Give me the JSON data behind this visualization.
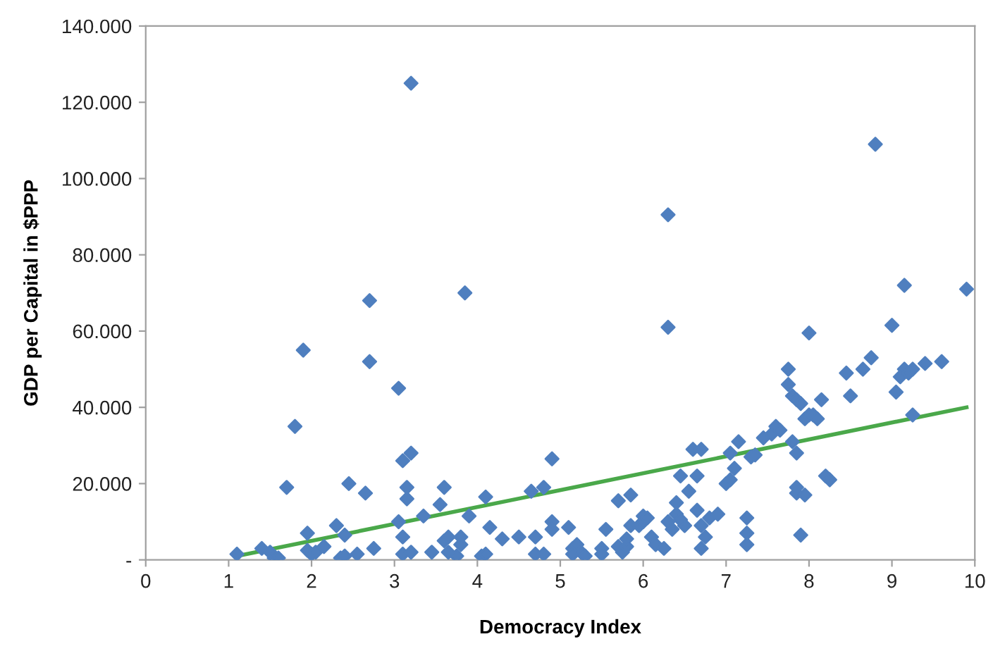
{
  "chart_data": {
    "type": "scatter",
    "xlabel": "Democracy Index",
    "ylabel": "GDP per Capital in $PPP",
    "xlim": [
      0,
      10
    ],
    "xticks": [
      0,
      1,
      2,
      3,
      4,
      5,
      6,
      7,
      8,
      9,
      10
    ],
    "ylim": [
      0,
      140000
    ],
    "yticks": [
      {
        "value": 0,
        "label": "-"
      },
      {
        "value": 20000,
        "label": "20.000"
      },
      {
        "value": 40000,
        "label": "40.000"
      },
      {
        "value": 60000,
        "label": "60.000"
      },
      {
        "value": 80000,
        "label": "80.000"
      },
      {
        "value": 100000,
        "label": "100.000"
      },
      {
        "value": 120000,
        "label": "120.000"
      },
      {
        "value": 140000,
        "label": "140.000"
      }
    ],
    "grid": false,
    "legend": false,
    "series": [
      {
        "marker": "diamond",
        "color": "#4f7fbf",
        "x": [
          1.1,
          1.4,
          1.5,
          1.55,
          1.6,
          1.7,
          1.8,
          1.9,
          1.95,
          1.95,
          2.0,
          2.05,
          2.15,
          2.3,
          2.35,
          2.4,
          2.4,
          2.45,
          2.55,
          2.65,
          2.7,
          2.7,
          2.75,
          3.05,
          3.05,
          3.1,
          3.1,
          3.1,
          3.15,
          3.15,
          3.2,
          3.2,
          3.2,
          3.35,
          3.45,
          3.55,
          3.6,
          3.6,
          3.65,
          3.65,
          3.75,
          3.8,
          3.8,
          3.85,
          3.9,
          4.05,
          4.1,
          4.1,
          4.15,
          4.3,
          4.5,
          4.65,
          4.7,
          4.7,
          4.8,
          4.8,
          4.9,
          4.9,
          4.9,
          5.1,
          5.15,
          5.15,
          5.2,
          5.25,
          5.3,
          5.5,
          5.5,
          5.55,
          5.7,
          5.7,
          5.75,
          5.8,
          5.8,
          5.85,
          5.85,
          5.95,
          6.0,
          6.0,
          6.05,
          6.1,
          6.15,
          6.25,
          6.3,
          6.3,
          6.3,
          6.35,
          6.4,
          6.4,
          6.45,
          6.5,
          6.45,
          6.55,
          6.6,
          6.65,
          6.65,
          6.7,
          6.7,
          6.7,
          6.75,
          6.8,
          6.9,
          7.0,
          7.05,
          7.05,
          7.1,
          7.15,
          7.25,
          7.25,
          7.25,
          7.3,
          7.35,
          7.45,
          7.55,
          7.6,
          7.65,
          7.75,
          7.75,
          7.8,
          7.8,
          7.85,
          7.85,
          7.85,
          7.85,
          7.9,
          7.9,
          7.95,
          7.95,
          8.0,
          8.0,
          8.05,
          8.1,
          8.15,
          8.2,
          8.25,
          8.45,
          8.5,
          8.65,
          8.75,
          8.8,
          9.0,
          9.05,
          9.1,
          9.15,
          9.15,
          9.2,
          9.25,
          9.25,
          9.4,
          9.6,
          9.9
        ],
        "values": [
          1500,
          3000,
          2000,
          500,
          500,
          19000,
          35000,
          55000,
          7000,
          2500,
          1500,
          2000,
          3500,
          9000,
          500,
          1000,
          6500,
          20000,
          1500,
          17500,
          68000,
          52000,
          3000,
          45000,
          10000,
          26000,
          6000,
          1500,
          16000,
          19000,
          28000,
          125000,
          2000,
          11500,
          2000,
          14500,
          19000,
          5000,
          2000,
          6000,
          1000,
          4000,
          6000,
          70000,
          11500,
          1000,
          1500,
          16500,
          8500,
          5500,
          6000,
          18000,
          6000,
          1500,
          1500,
          19000,
          26500,
          10000,
          8000,
          8500,
          3000,
          1500,
          4000,
          2000,
          1000,
          3000,
          1500,
          8000,
          3500,
          15500,
          2000,
          3500,
          5500,
          17000,
          9000,
          9000,
          10000,
          11500,
          11000,
          6000,
          4000,
          3000,
          61000,
          90500,
          10000,
          8000,
          12000,
          15000,
          22000,
          9000,
          10500,
          18000,
          29000,
          22000,
          13000,
          29000,
          3000,
          9000,
          6000,
          11000,
          12000,
          20000,
          21000,
          28000,
          24000,
          31000,
          4000,
          7000,
          11000,
          27000,
          27500,
          32000,
          33000,
          35000,
          34000,
          50000,
          46000,
          43000,
          31000,
          42000,
          28000,
          19000,
          17500,
          41000,
          6500,
          17000,
          37000,
          59500,
          38000,
          38000,
          37000,
          42000,
          22000,
          21000,
          49000,
          43000,
          50000,
          53000,
          109000,
          61500,
          44000,
          48000,
          72000,
          50000,
          49000,
          38000,
          50000,
          51500,
          52000,
          71000
        ]
      },
      {
        "type": "line",
        "color": "#4aa84a",
        "x": [
          1.1,
          9.9
        ],
        "values": [
          1000,
          40000
        ],
        "line_style": "solid",
        "marker": "none"
      }
    ]
  }
}
